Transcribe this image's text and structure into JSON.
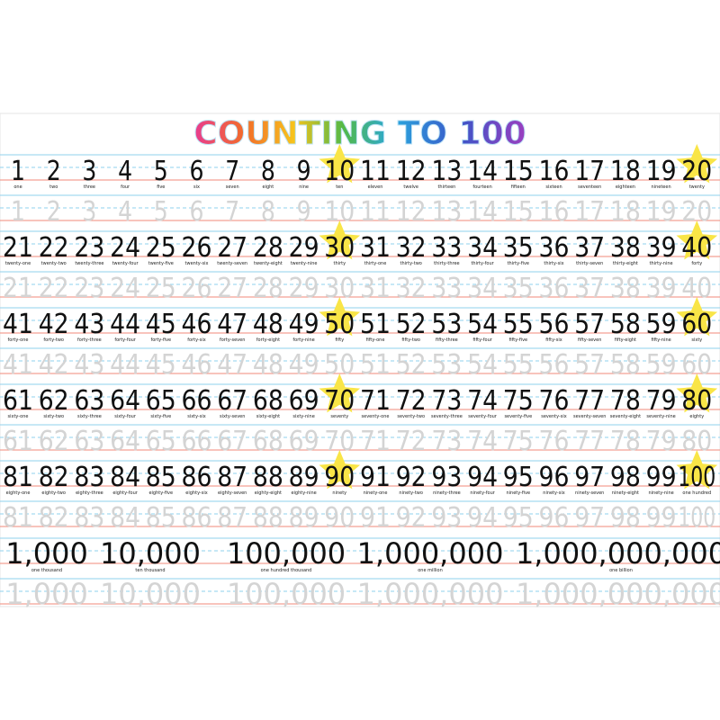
{
  "title": "COUNTING TO 100",
  "rows": [
    {
      "numbers": [
        1,
        2,
        3,
        4,
        5,
        6,
        7,
        8,
        9,
        10,
        11,
        12,
        13,
        14,
        15,
        16,
        17,
        18,
        19,
        20
      ],
      "words": [
        "one",
        "two",
        "three",
        "four",
        "five",
        "six",
        "seven",
        "eight",
        "nine",
        "ten",
        "eleven",
        "twelve",
        "thirteen",
        "fourteen",
        "fifteen",
        "sixteen",
        "seventeen",
        "eighteen",
        "nineteen",
        "twenty"
      ]
    },
    {
      "numbers": [
        21,
        22,
        23,
        24,
        25,
        26,
        27,
        28,
        29,
        30,
        31,
        32,
        33,
        34,
        35,
        36,
        37,
        38,
        39,
        40
      ],
      "words": [
        "twenty-one",
        "twenty-two",
        "twenty-three",
        "twenty-four",
        "twenty-five",
        "twenty-six",
        "twenty-seven",
        "twenty-eight",
        "twenty-nine",
        "thirty",
        "thirty-one",
        "thirty-two",
        "thirty-three",
        "thirty-four",
        "thirty-five",
        "thirty-six",
        "thirty-seven",
        "thirty-eight",
        "thirty-nine",
        "forty"
      ]
    },
    {
      "numbers": [
        41,
        42,
        43,
        44,
        45,
        46,
        47,
        48,
        49,
        50,
        51,
        52,
        53,
        54,
        55,
        56,
        57,
        58,
        59,
        60
      ],
      "words": [
        "forty-one",
        "forty-two",
        "forty-three",
        "forty-four",
        "forty-five",
        "forty-six",
        "forty-seven",
        "forty-eight",
        "forty-nine",
        "fifty",
        "fifty-one",
        "fifty-two",
        "fifty-three",
        "fifty-four",
        "fifty-five",
        "fifty-six",
        "fifty-seven",
        "fifty-eight",
        "fifty-nine",
        "sixty"
      ]
    },
    {
      "numbers": [
        61,
        62,
        63,
        64,
        65,
        66,
        67,
        68,
        69,
        70,
        71,
        72,
        73,
        74,
        75,
        76,
        77,
        78,
        79,
        80
      ],
      "words": [
        "sixty-one",
        "sixty-two",
        "sixty-three",
        "sixty-four",
        "sixty-five",
        "sixty-six",
        "sixty-seven",
        "sixty-eight",
        "sixty-nine",
        "seventy",
        "seventy-one",
        "seventy-two",
        "seventy-three",
        "seventy-four",
        "seventy-five",
        "seventy-six",
        "seventy-seven",
        "seventy-eight",
        "seventy-nine",
        "eighty"
      ]
    },
    {
      "numbers": [
        81,
        82,
        83,
        84,
        85,
        86,
        87,
        88,
        89,
        90,
        91,
        92,
        93,
        94,
        95,
        96,
        97,
        98,
        99,
        100
      ],
      "words": [
        "eighty-one",
        "eighty-two",
        "eighty-three",
        "eighty-four",
        "eighty-five",
        "eighty-six",
        "eighty-seven",
        "eighty-eight",
        "eighty-nine",
        "ninety",
        "ninety-one",
        "ninety-two",
        "ninety-three",
        "ninety-four",
        "ninety-five",
        "ninety-six",
        "ninety-seven",
        "ninety-eight",
        "ninety-nine",
        "one hundred"
      ]
    }
  ],
  "big": [
    {
      "number": "1,000",
      "word": "one thousand"
    },
    {
      "number": "10,000",
      "word": "ten thousand"
    },
    {
      "number": "100,000",
      "word": "one hundred thousand"
    },
    {
      "number": "1,000,000",
      "word": "one million"
    },
    {
      "number": "1,000,000,000",
      "word": "one billion"
    }
  ]
}
